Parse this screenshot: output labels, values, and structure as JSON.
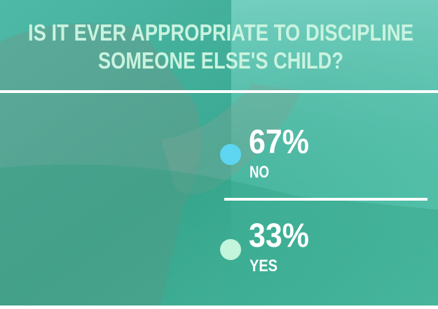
{
  "title_lines": [
    "IS IT EVER APPROPRIATE TO DISCIPLINE",
    "SOMEONE ELSE'S CHILD?"
  ],
  "options": [
    {
      "percent": "67%",
      "label": "NO"
    },
    {
      "percent": "33%",
      "label": "YES"
    }
  ]
}
